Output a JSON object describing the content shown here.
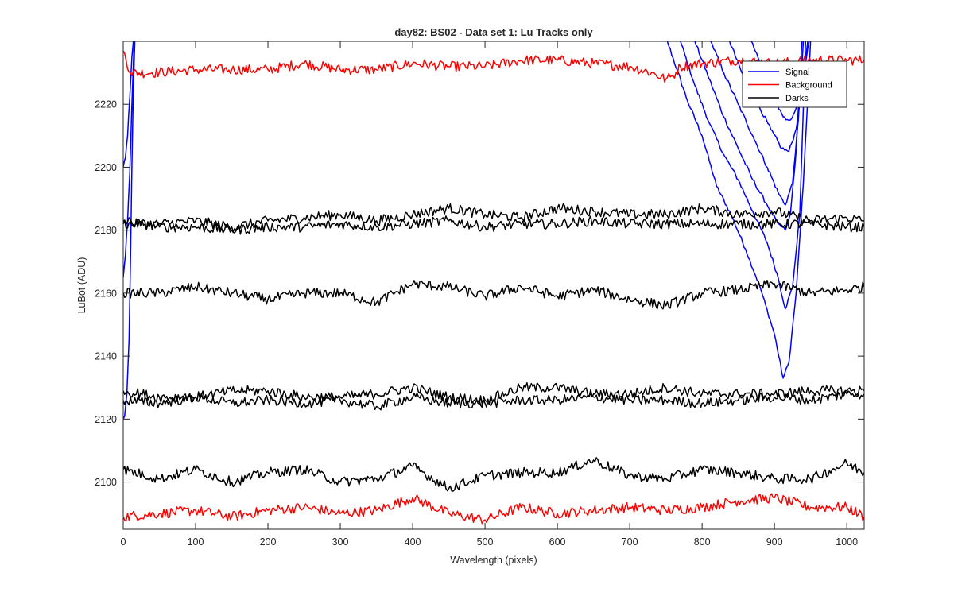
{
  "chart_data": {
    "type": "line",
    "title": "day82: BS02 - Data set 1: Lu Tracks only",
    "xlabel": "Wavelength (pixels)",
    "ylabel": "LuBot (ADU)",
    "xlim": [
      0,
      1024
    ],
    "ylim": [
      2085,
      2240
    ],
    "xticks": [
      0,
      100,
      200,
      300,
      400,
      500,
      600,
      700,
      800,
      900,
      1000
    ],
    "yticks": [
      2100,
      2120,
      2140,
      2160,
      2180,
      2200,
      2220
    ],
    "grid": false,
    "legend": {
      "placement": "top-right",
      "entries": [
        {
          "label": "Signal",
          "color": "#0000ff"
        },
        {
          "label": "Background",
          "color": "#ff0000"
        },
        {
          "label": "Darks",
          "color": "#000000"
        }
      ]
    },
    "series": [
      {
        "group": "Signal",
        "color": "#0000ff",
        "x": [
          0,
          2,
          5,
          8,
          10,
          12,
          14,
          16
        ],
        "y": [
          2120,
          2121,
          2128,
          2145,
          2170,
          2200,
          2225,
          2240
        ]
      },
      {
        "group": "Signal",
        "color": "#0000ff",
        "x": [
          0,
          3,
          6,
          9,
          12,
          15
        ],
        "y": [
          2165,
          2172,
          2183,
          2198,
          2220,
          2240
        ]
      },
      {
        "group": "Signal",
        "color": "#0000ff",
        "x": [
          0,
          3,
          6,
          9,
          12,
          14
        ],
        "y": [
          2200,
          2203,
          2210,
          2222,
          2235,
          2240
        ]
      },
      {
        "group": "Signal",
        "color": "#0000ff",
        "x": [
          752,
          780,
          800,
          820,
          840,
          860,
          880,
          900,
          912,
          920,
          930,
          940,
          950
        ],
        "y": [
          2240,
          2221,
          2210,
          2194,
          2185,
          2174,
          2162,
          2147,
          2133,
          2138,
          2160,
          2195,
          2240
        ]
      },
      {
        "group": "Signal",
        "color": "#0000ff",
        "x": [
          770,
          790,
          810,
          830,
          850,
          870,
          890,
          905,
          915,
          925,
          935,
          943
        ],
        "y": [
          2240,
          2226,
          2214,
          2204,
          2196,
          2186,
          2176,
          2165,
          2155,
          2162,
          2185,
          2240
        ]
      },
      {
        "group": "Signal",
        "color": "#0000ff",
        "x": [
          790,
          810,
          830,
          850,
          870,
          890,
          905,
          915,
          922,
          930,
          938
        ],
        "y": [
          2240,
          2228,
          2216,
          2206,
          2196,
          2188,
          2182,
          2180,
          2185,
          2205,
          2240
        ]
      },
      {
        "group": "Signal",
        "color": "#0000ff",
        "x": [
          812,
          830,
          850,
          870,
          890,
          905,
          915,
          925,
          933,
          940
        ],
        "y": [
          2240,
          2230,
          2220,
          2210,
          2200,
          2192,
          2188,
          2195,
          2215,
          2240
        ]
      },
      {
        "group": "Signal",
        "color": "#0000ff",
        "x": [
          838,
          855,
          875,
          895,
          910,
          920,
          930,
          940,
          946
        ],
        "y": [
          2240,
          2230,
          2221,
          2212,
          2206,
          2205,
          2212,
          2230,
          2240
        ]
      },
      {
        "group": "Signal",
        "color": "#0000ff",
        "x": [
          868,
          885,
          900,
          912,
          922,
          932,
          940,
          948
        ],
        "y": [
          2240,
          2230,
          2222,
          2216,
          2215,
          2220,
          2230,
          2240
        ]
      },
      {
        "group": "Background",
        "color": "#ff0000",
        "x": [
          0,
          10,
          40,
          100,
          150,
          200,
          250,
          300,
          350,
          400,
          450,
          500,
          550,
          600,
          650,
          700,
          730,
          750,
          760,
          770,
          800,
          850,
          900,
          950,
          1000,
          1024
        ],
        "y": [
          2237,
          2230,
          2230,
          2231,
          2231,
          2231,
          2233,
          2231,
          2231,
          2233,
          2232,
          2232,
          2234,
          2234,
          2233,
          2232,
          2230,
          2228,
          2229,
          2232,
          2233,
          2234,
          2233,
          2234,
          2234,
          2234
        ]
      },
      {
        "group": "Background",
        "color": "#ff0000",
        "x": [
          0,
          50,
          100,
          150,
          200,
          250,
          300,
          350,
          400,
          450,
          500,
          550,
          600,
          650,
          700,
          750,
          800,
          850,
          900,
          950,
          1000,
          1024
        ],
        "y": [
          2089,
          2090,
          2091,
          2089,
          2091,
          2092,
          2090,
          2091,
          2095,
          2090,
          2088,
          2092,
          2090,
          2091,
          2092,
          2091,
          2092,
          2094,
          2095,
          2092,
          2092,
          2089
        ]
      },
      {
        "group": "Darks",
        "color": "#000000",
        "x": [
          0,
          50,
          100,
          150,
          200,
          250,
          300,
          350,
          400,
          450,
          500,
          550,
          600,
          650,
          700,
          750,
          800,
          850,
          900,
          950,
          1000,
          1024
        ],
        "y": [
          2182,
          2182,
          2183,
          2181,
          2183,
          2184,
          2185,
          2183,
          2185,
          2187,
          2185,
          2184,
          2187,
          2186,
          2185,
          2185,
          2187,
          2185,
          2186,
          2183,
          2184,
          2183
        ]
      },
      {
        "group": "Darks",
        "color": "#000000",
        "x": [
          0,
          50,
          100,
          150,
          200,
          250,
          300,
          350,
          400,
          450,
          500,
          550,
          600,
          650,
          700,
          750,
          800,
          850,
          900,
          950,
          1000,
          1024
        ],
        "y": [
          2183,
          2181,
          2181,
          2180,
          2181,
          2181,
          2182,
          2181,
          2182,
          2183,
          2181,
          2182,
          2182,
          2183,
          2182,
          2182,
          2182,
          2182,
          2182,
          2182,
          2181,
          2181
        ]
      },
      {
        "group": "Darks",
        "color": "#000000",
        "x": [
          0,
          50,
          100,
          150,
          200,
          250,
          300,
          350,
          400,
          450,
          500,
          550,
          600,
          650,
          700,
          750,
          800,
          850,
          900,
          950,
          1000,
          1024
        ],
        "y": [
          2160,
          2160,
          2162,
          2160,
          2158,
          2160,
          2160,
          2157,
          2163,
          2162,
          2159,
          2162,
          2159,
          2161,
          2158,
          2156,
          2160,
          2161,
          2163,
          2160,
          2161,
          2162
        ]
      },
      {
        "group": "Darks",
        "color": "#000000",
        "x": [
          0,
          50,
          100,
          150,
          200,
          250,
          300,
          350,
          400,
          450,
          500,
          550,
          600,
          650,
          700,
          750,
          800,
          850,
          900,
          950,
          1000,
          1024
        ],
        "y": [
          2129,
          2127,
          2127,
          2129,
          2129,
          2127,
          2127,
          2128,
          2130,
          2127,
          2126,
          2130,
          2130,
          2128,
          2128,
          2130,
          2128,
          2128,
          2128,
          2129,
          2129,
          2129
        ]
      },
      {
        "group": "Darks",
        "color": "#000000",
        "x": [
          0,
          50,
          100,
          150,
          200,
          250,
          300,
          350,
          400,
          450,
          500,
          550,
          600,
          650,
          700,
          750,
          800,
          850,
          900,
          950,
          1000,
          1024
        ],
        "y": [
          2126,
          2125,
          2127,
          2125,
          2126,
          2125,
          2126,
          2124,
          2127,
          2125,
          2125,
          2126,
          2126,
          2127,
          2126,
          2126,
          2125,
          2126,
          2127,
          2126,
          2128,
          2128
        ]
      },
      {
        "group": "Darks",
        "color": "#000000",
        "x": [
          0,
          50,
          100,
          150,
          200,
          250,
          300,
          350,
          400,
          450,
          500,
          550,
          600,
          650,
          700,
          750,
          800,
          850,
          900,
          950,
          1000,
          1024
        ],
        "y": [
          2104,
          2101,
          2104,
          2100,
          2103,
          2104,
          2100,
          2101,
          2105,
          2098,
          2102,
          2103,
          2103,
          2107,
          2102,
          2101,
          2104,
          2103,
          2101,
          2101,
          2106,
          2103
        ]
      }
    ]
  }
}
